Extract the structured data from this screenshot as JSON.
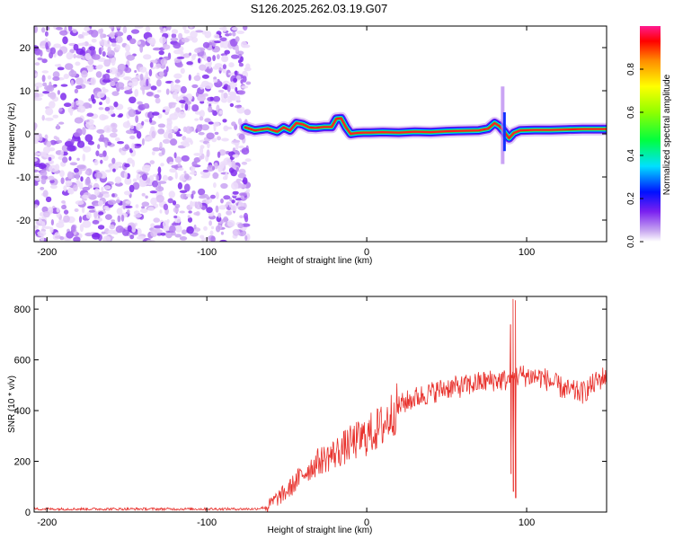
{
  "chart_data": [
    {
      "type": "heatmap",
      "title": "S126.2025.262.03.19.G07",
      "xlabel": "Height of straight line (km)",
      "ylabel": "Frequency (Hz)",
      "xlim": [
        -208,
        150
      ],
      "ylim": [
        -25,
        25
      ],
      "xticks": [
        -200,
        -100,
        0,
        100
      ],
      "yticks": [
        -20,
        -10,
        0,
        10,
        20
      ],
      "noise_region_x": [
        -208,
        -74
      ],
      "ridge": [
        [
          -76,
          1.5
        ],
        [
          -70,
          0.8
        ],
        [
          -62,
          1.2
        ],
        [
          -56,
          0.5
        ],
        [
          -52,
          1.5
        ],
        [
          -48,
          0.8
        ],
        [
          -44,
          2.5
        ],
        [
          -40,
          2.2
        ],
        [
          -36,
          1.5
        ],
        [
          -32,
          1.4
        ],
        [
          -27,
          1.6
        ],
        [
          -22,
          1.6
        ],
        [
          -19,
          3.5
        ],
        [
          -16,
          3.6
        ],
        [
          -13,
          1.5
        ],
        [
          -10,
          0.0
        ],
        [
          -6,
          0.2
        ],
        [
          -2,
          0.3
        ],
        [
          2,
          0.3
        ],
        [
          10,
          0.4
        ],
        [
          20,
          0.3
        ],
        [
          30,
          0.5
        ],
        [
          40,
          0.4
        ],
        [
          50,
          0.6
        ],
        [
          60,
          0.7
        ],
        [
          70,
          0.8
        ],
        [
          76,
          1.2
        ],
        [
          80,
          2.5
        ],
        [
          83,
          1.8
        ],
        [
          86,
          0.5
        ],
        [
          89,
          -1.0
        ],
        [
          92,
          0.2
        ],
        [
          96,
          0.8
        ],
        [
          105,
          0.9
        ],
        [
          115,
          0.9
        ],
        [
          125,
          1.0
        ],
        [
          135,
          1.1
        ],
        [
          150,
          1.1
        ]
      ],
      "colorbar": {
        "label": "Normalized spectral amplitude",
        "ticks": [
          "0.0",
          "0.2",
          "0.4",
          "0.6",
          "0.8"
        ],
        "range": [
          0,
          1
        ]
      }
    },
    {
      "type": "line",
      "xlabel": "Height of straight line (km)",
      "ylabel": "SNR (10 * v/v)",
      "xlim": [
        -208,
        150
      ],
      "ylim": [
        0,
        850
      ],
      "xticks": [
        -200,
        -100,
        0,
        100
      ],
      "yticks": [
        0,
        200,
        400,
        600,
        800
      ],
      "color": "#e8322d",
      "trend": [
        [
          -208,
          12
        ],
        [
          -70,
          12
        ],
        [
          -62,
          20
        ],
        [
          -58,
          45
        ],
        [
          -50,
          80
        ],
        [
          -40,
          150
        ],
        [
          -30,
          200
        ],
        [
          -20,
          230
        ],
        [
          -10,
          270
        ],
        [
          0,
          300
        ],
        [
          10,
          340
        ],
        [
          20,
          420
        ],
        [
          30,
          450
        ],
        [
          40,
          470
        ],
        [
          50,
          490
        ],
        [
          60,
          495
        ],
        [
          70,
          510
        ],
        [
          80,
          520
        ],
        [
          88,
          520
        ],
        [
          96,
          540
        ],
        [
          110,
          530
        ],
        [
          125,
          480
        ],
        [
          135,
          470
        ],
        [
          145,
          520
        ],
        [
          150,
          540
        ]
      ],
      "spikes": [
        {
          "x": 91.5,
          "low": 80,
          "high": 840
        },
        {
          "x": 93.0,
          "low": 55,
          "high": 835
        },
        {
          "x": 90.0,
          "low": 150,
          "high": 740
        }
      ]
    }
  ]
}
